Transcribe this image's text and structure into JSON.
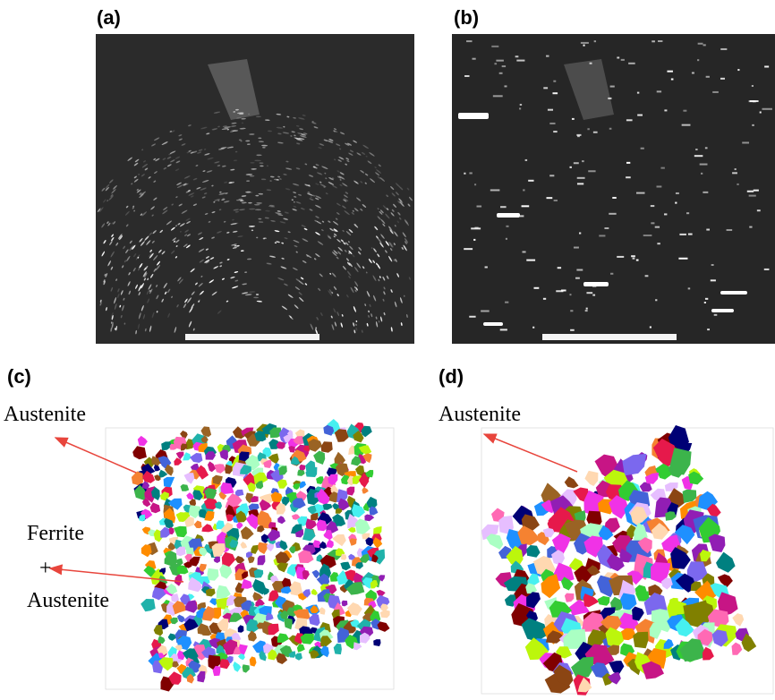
{
  "panels": [
    {
      "label": "(a)"
    },
    {
      "label": "(b)"
    },
    {
      "label": "(c)",
      "annotations": [
        "Austenite",
        "Ferrite",
        "+",
        "Austenite"
      ]
    },
    {
      "label": "(d)",
      "annotations": [
        "Austenite"
      ]
    }
  ]
}
